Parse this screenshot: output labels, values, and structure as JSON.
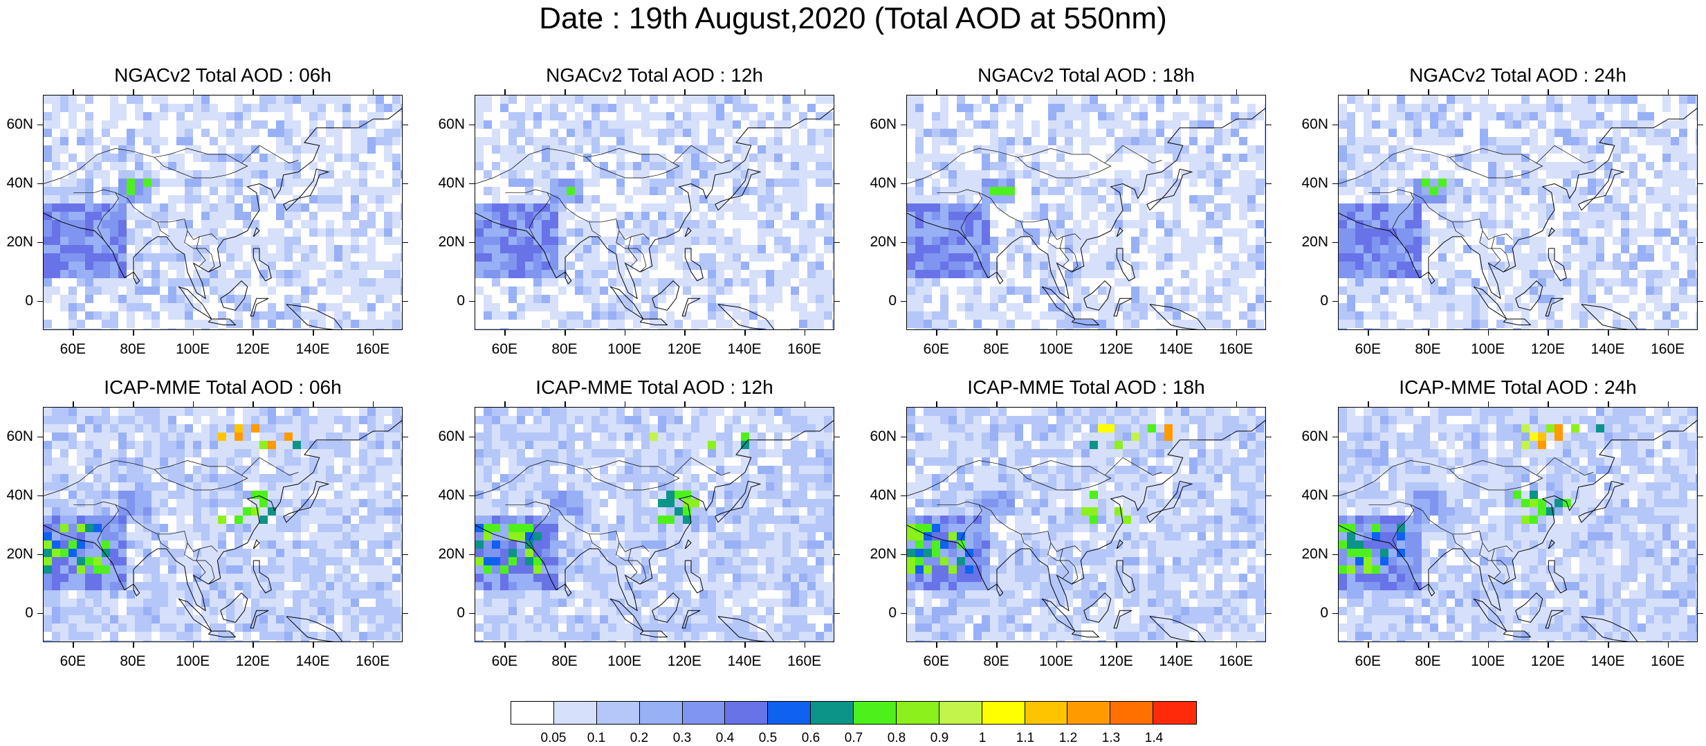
{
  "title": "Date : 19th August,2020 (Total AOD at 550nm)",
  "axes": {
    "lon_ticks": [
      "60E",
      "80E",
      "100E",
      "120E",
      "140E",
      "160E"
    ],
    "lon_values": [
      60,
      80,
      100,
      120,
      140,
      160
    ],
    "lon_range": [
      50,
      170
    ],
    "lat_ticks": [
      "60N",
      "40N",
      "20N",
      "0"
    ],
    "lat_values": [
      60,
      40,
      20,
      0
    ],
    "lat_range": [
      -10,
      70
    ]
  },
  "panels": [
    {
      "title": "NGACv2 Total AOD : 06h",
      "model": "NGACv2",
      "hour": "06h"
    },
    {
      "title": "NGACv2 Total AOD : 12h",
      "model": "NGACv2",
      "hour": "12h"
    },
    {
      "title": "NGACv2 Total AOD : 18h",
      "model": "NGACv2",
      "hour": "18h"
    },
    {
      "title": "NGACv2 Total AOD : 24h",
      "model": "NGACv2",
      "hour": "24h"
    },
    {
      "title": "ICAP-MME Total AOD : 06h",
      "model": "ICAP-MME",
      "hour": "06h"
    },
    {
      "title": "ICAP-MME Total AOD : 12h",
      "model": "ICAP-MME",
      "hour": "12h"
    },
    {
      "title": "ICAP-MME Total AOD : 18h",
      "model": "ICAP-MME",
      "hour": "18h"
    },
    {
      "title": "ICAP-MME Total AOD : 24h",
      "model": "ICAP-MME",
      "hour": "24h"
    }
  ],
  "colorbar": {
    "labels": [
      "0.05",
      "0.1",
      "0.2",
      "0.3",
      "0.4",
      "0.5",
      "0.6",
      "0.7",
      "0.8",
      "0.9",
      "1",
      "1.1",
      "1.2",
      "1.3",
      "1.4"
    ],
    "colors": [
      "#ffffff",
      "#d6e0fb",
      "#b5c6f8",
      "#98b0f5",
      "#7f95ef",
      "#6873e8",
      "#0f62f0",
      "#0d9488",
      "#4ef01c",
      "#8cf01c",
      "#c2f44a",
      "#ffff00",
      "#ffc400",
      "#ff9a00",
      "#ff7000",
      "#ff2a0a"
    ]
  },
  "colors": {
    "land_outline": "#000000",
    "background_haze": "#b5c6f8"
  }
}
